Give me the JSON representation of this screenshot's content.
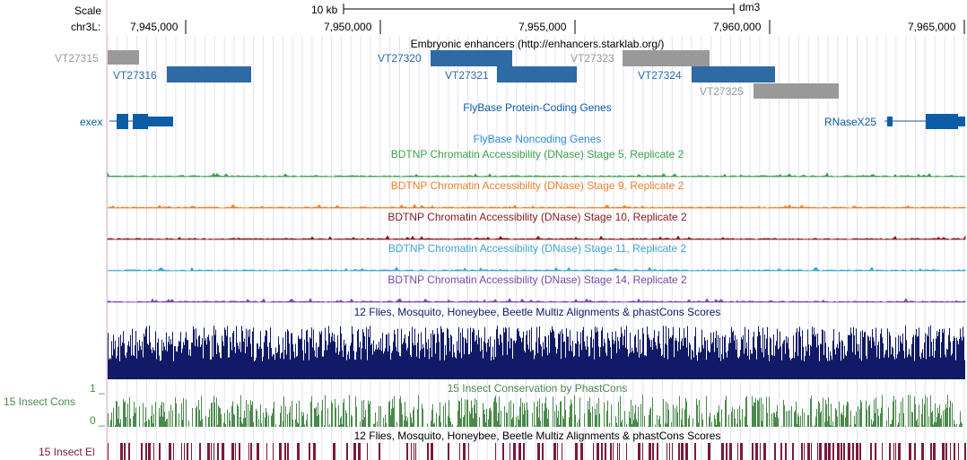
{
  "header": {
    "scale_label": "Scale",
    "chrom_label": "chr3L:",
    "scale_bar_label": "10 kb",
    "assembly": "dm3"
  },
  "ruler": {
    "ticks": [
      "7,945,000",
      "7,950,000",
      "7,955,000",
      "7,960,000",
      "7,965,000"
    ]
  },
  "tracks": {
    "enhancers": {
      "title": "Embryonic enhancers (http://enhancers.starklab.org/)",
      "features": [
        {
          "name": "VT27315",
          "color": "#999999"
        },
        {
          "name": "VT27316",
          "color": "#2e6aa3"
        },
        {
          "name": "VT27320",
          "color": "#2e6aa3"
        },
        {
          "name": "VT27321",
          "color": "#2e6aa3"
        },
        {
          "name": "VT27323",
          "color": "#999999"
        },
        {
          "name": "VT27324",
          "color": "#2e6aa3"
        },
        {
          "name": "VT27325",
          "color": "#999999"
        }
      ]
    },
    "coding_genes": {
      "title": "FlyBase Protein-Coding Genes",
      "color": "#0c5da6",
      "genes": [
        "exex",
        "RNaseX25"
      ]
    },
    "noncoding_genes": {
      "title": "FlyBase Noncoding Genes",
      "color": "#2b8ad6"
    },
    "dnase": [
      {
        "title": "BDTNP Chromatin Accessibility (DNase) Stage 5, Replicate 2",
        "color": "#3aa34a"
      },
      {
        "title": "BDTNP Chromatin Accessibility (DNase) Stage 9, Replicate 2",
        "color": "#ef7f2a"
      },
      {
        "title": "BDTNP Chromatin Accessibility (DNase) Stage 10, Replicate 2",
        "color": "#8b1a1a"
      },
      {
        "title": "BDTNP Chromatin Accessibility (DNase) Stage 11, Replicate 2",
        "color": "#3ea6cf"
      },
      {
        "title": "BDTNP Chromatin Accessibility (DNase) Stage 14, Replicate 2",
        "color": "#7a4aa8"
      }
    ],
    "multiz_top": {
      "title": "12 Flies, Mosquito, Honeybee, Beetle Multiz Alignments & phastCons Scores",
      "color": "#111a66"
    },
    "insect_cons": {
      "title": "15 Insect Conservation by PhastCons",
      "side_label": "15 Insect Cons",
      "y_max_label": "1 _",
      "y_min_label": "0 _",
      "color": "#4a8a4a"
    },
    "multiz_bottom": {
      "title": "12 Flies, Mosquito, Honeybee, Beetle Multiz Alignments & phastCons Scores"
    },
    "insect_elements": {
      "side_label": "15 Insect El",
      "color": "#7a1a3a"
    }
  }
}
